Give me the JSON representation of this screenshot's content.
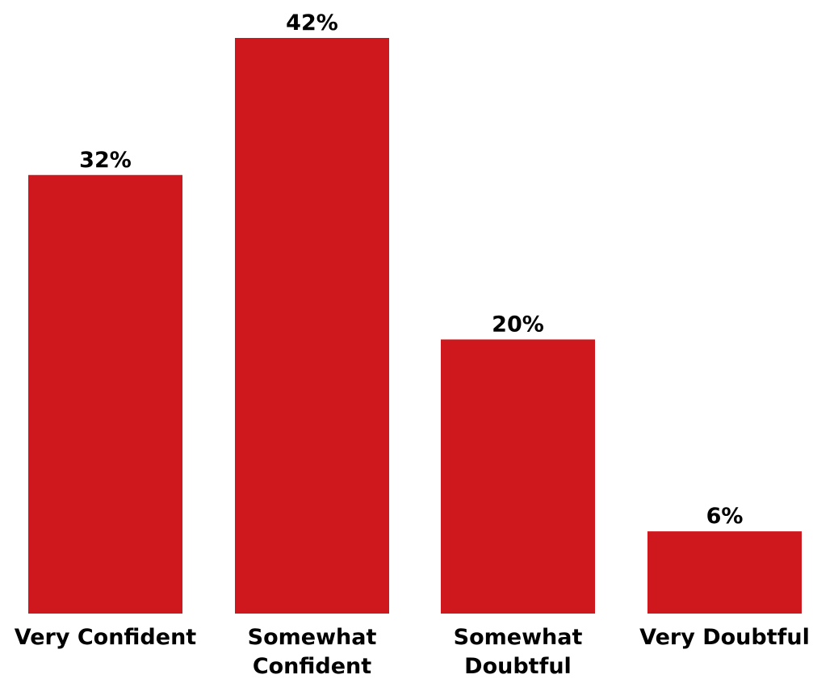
{
  "chart_data": {
    "type": "bar",
    "categories": [
      [
        "Very Confident"
      ],
      [
        "Somewhat",
        "Confident"
      ],
      [
        "Somewhat",
        "Doubtful"
      ],
      [
        "Very Doubtful"
      ]
    ],
    "values": [
      32,
      42,
      20,
      6
    ],
    "value_labels": [
      "32%",
      "42%",
      "20%",
      "6%"
    ],
    "title": "",
    "xlabel": "",
    "ylabel": "",
    "ylim": [
      0,
      42
    ],
    "grid": false,
    "legend": "none",
    "bar_color": "#CF181E"
  }
}
